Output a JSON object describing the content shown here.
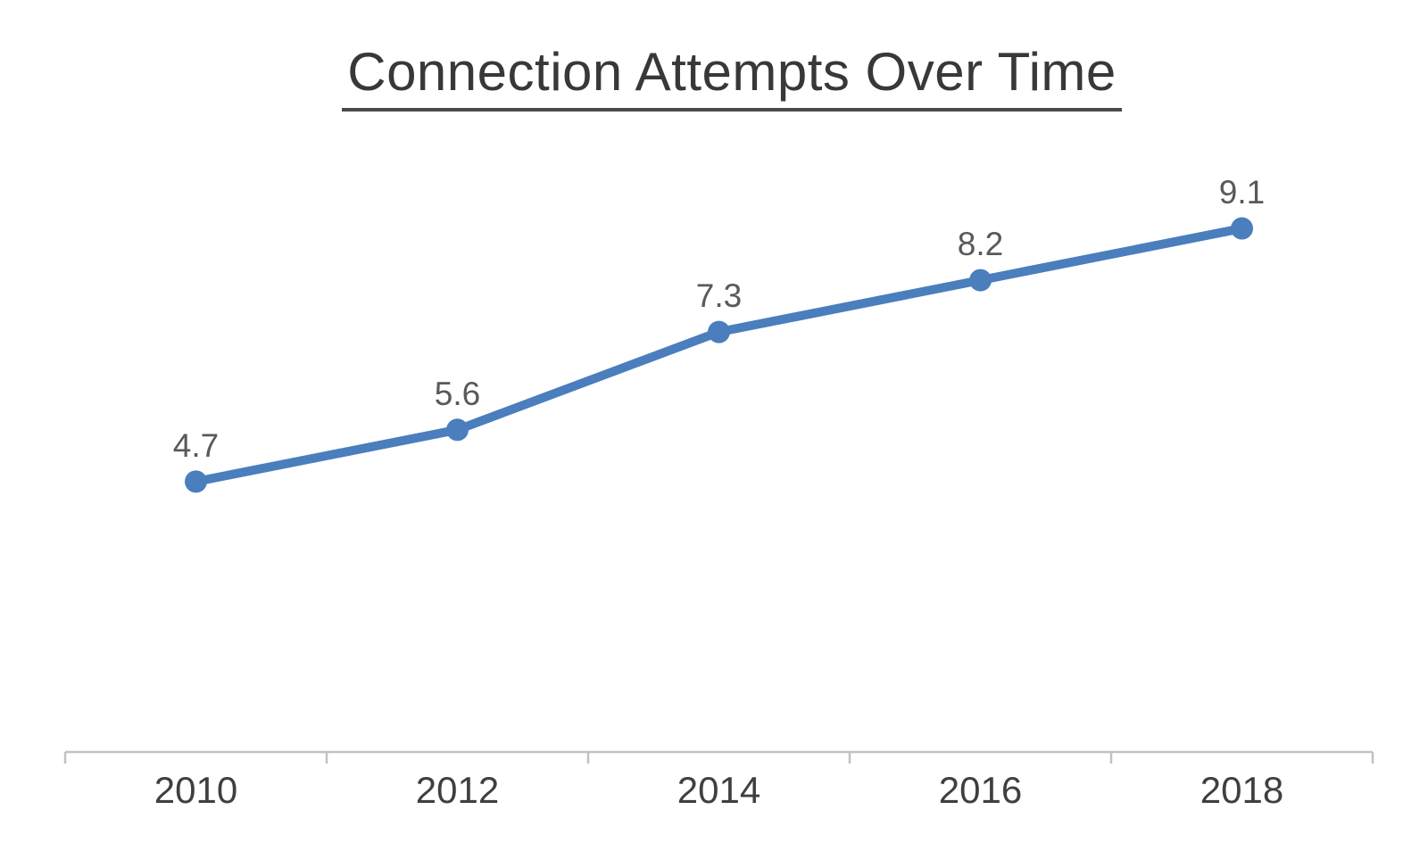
{
  "chart_data": {
    "type": "line",
    "title": "Connection Attempts Over Time",
    "categories": [
      "2010",
      "2012",
      "2014",
      "2016",
      "2018"
    ],
    "series": [
      {
        "name": "Connection Attempts",
        "values": [
          4.7,
          5.6,
          7.3,
          8.2,
          9.1
        ]
      }
    ],
    "data_labels": [
      "4.7",
      "5.6",
      "7.3",
      "8.2",
      "9.1"
    ],
    "xlabel": "",
    "ylabel": "",
    "ylim": [
      0,
      10
    ],
    "grid": false,
    "legend": false,
    "colors": {
      "line": "#4a7ebd",
      "marker": "#4a7ebd",
      "title_text": "#383838",
      "data_label_text": "#595959",
      "tick_label_text": "#3f3f3f",
      "axis_line": "#c2c2c2",
      "background": "#ffffff"
    }
  }
}
